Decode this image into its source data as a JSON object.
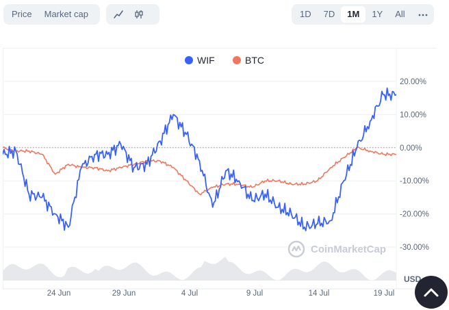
{
  "toolbar": {
    "view_tabs": [
      "Price",
      "Market cap"
    ],
    "active_view": "Price",
    "chart_type_icons": [
      "line-chart-icon",
      "candlestick-icon"
    ],
    "ranges": [
      "1D",
      "7D",
      "1M",
      "1Y",
      "All"
    ],
    "active_range": "1M",
    "more_icon": "more-dots-icon"
  },
  "watermark": "CoinMarketCap",
  "currency_label": "USD",
  "colors": {
    "wif": "#3861fb",
    "btc": "#f0775e",
    "volume": "#e6e8ec",
    "grid": "#eef0f3"
  },
  "chart_data": {
    "type": "line",
    "x_unit": "date",
    "x_ticks": [
      "24 Jun",
      "29 Jun",
      "4 Jul",
      "9 Jul",
      "14 Jul",
      "19 Jul"
    ],
    "y_ticks": [
      "20.00%",
      "10.00%",
      "0.00%",
      "-10.00%",
      "-20.00%",
      "-30.00%"
    ],
    "ylim": [
      -30,
      20
    ],
    "xlim": [
      "2024-06-20",
      "2024-07-20"
    ],
    "baseline": 0,
    "legend": "top-center",
    "series": [
      {
        "name": "WIF",
        "color": "#3861fb",
        "x": [
          "2024-06-20",
          "2024-06-21",
          "2024-06-22",
          "2024-06-23",
          "2024-06-24",
          "2024-06-25",
          "2024-06-26",
          "2024-06-27",
          "2024-06-28",
          "2024-06-29",
          "2024-06-30",
          "2024-07-01",
          "2024-07-02",
          "2024-07-03",
          "2024-07-04",
          "2024-07-05",
          "2024-07-06",
          "2024-07-07",
          "2024-07-08",
          "2024-07-09",
          "2024-07-10",
          "2024-07-11",
          "2024-07-12",
          "2024-07-13",
          "2024-07-14",
          "2024-07-15",
          "2024-07-16",
          "2024-07-17",
          "2024-07-18",
          "2024-07-19",
          "2024-07-20"
        ],
        "values": [
          -2,
          -1,
          -14,
          -15,
          -20,
          -24,
          -6,
          -2,
          -2,
          1,
          -6,
          -5,
          2,
          10,
          4,
          -4,
          -18,
          -7,
          -10,
          -16,
          -14,
          -18,
          -20,
          -24,
          -23,
          -22,
          -10,
          0,
          8,
          16,
          16
        ]
      },
      {
        "name": "BTC",
        "color": "#f0775e",
        "x": [
          "2024-06-20",
          "2024-06-21",
          "2024-06-22",
          "2024-06-23",
          "2024-06-24",
          "2024-06-25",
          "2024-06-26",
          "2024-06-27",
          "2024-06-28",
          "2024-06-29",
          "2024-06-30",
          "2024-07-01",
          "2024-07-02",
          "2024-07-03",
          "2024-07-04",
          "2024-07-05",
          "2024-07-06",
          "2024-07-07",
          "2024-07-08",
          "2024-07-09",
          "2024-07-10",
          "2024-07-11",
          "2024-07-12",
          "2024-07-13",
          "2024-07-14",
          "2024-07-15",
          "2024-07-16",
          "2024-07-17",
          "2024-07-18",
          "2024-07-19",
          "2024-07-20"
        ],
        "values": [
          0,
          -1,
          -1,
          -2,
          -8,
          -5,
          -6,
          -6,
          -7,
          -6,
          -5,
          -4,
          -4,
          -6,
          -10,
          -14,
          -12,
          -11,
          -11,
          -12,
          -10,
          -10,
          -11,
          -11,
          -10,
          -6,
          -3,
          0,
          -1,
          -2,
          -2
        ]
      }
    ]
  }
}
